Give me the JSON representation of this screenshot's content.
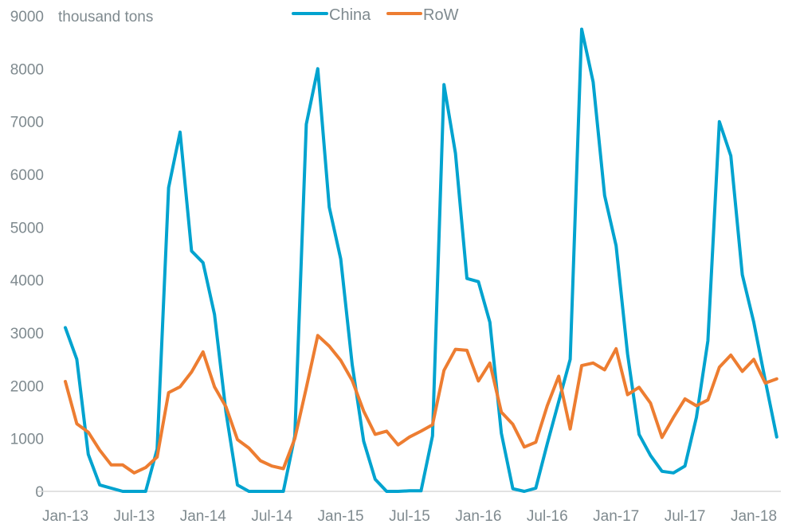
{
  "chart_data": {
    "type": "line",
    "title": "",
    "ylabel": "thousand tons",
    "xlabel": "",
    "ylim": [
      0,
      9000
    ],
    "yticks": [
      0,
      1000,
      2000,
      3000,
      4000,
      5000,
      6000,
      7000,
      8000,
      9000
    ],
    "start_month": "Jan-13",
    "xtick_labels": [
      "Jan-13",
      "Jul-13",
      "Jan-14",
      "Jul-14",
      "Jan-15",
      "Jul-15",
      "Jan-16",
      "Jul-16",
      "Jan-17",
      "Jul-17",
      "Jan-18"
    ],
    "xtick_every_months": 6,
    "legend_position": "top-center",
    "grid": false,
    "series": [
      {
        "name": "China",
        "color": "#00a3cf",
        "values": [
          3100,
          2500,
          700,
          120,
          60,
          0,
          0,
          0,
          800,
          5750,
          6800,
          4550,
          4330,
          3350,
          1500,
          120,
          0,
          0,
          0,
          0,
          1050,
          6950,
          8000,
          5380,
          4400,
          2400,
          950,
          230,
          0,
          0,
          10,
          10,
          1050,
          7700,
          6400,
          4030,
          3970,
          3200,
          1100,
          50,
          0,
          60,
          900,
          1700,
          2500,
          8750,
          7750,
          5600,
          4650,
          2600,
          1080,
          680,
          380,
          350,
          480,
          1400,
          2850,
          7000,
          6350,
          4100,
          3200,
          2100,
          1030
        ]
      },
      {
        "name": "RoW",
        "color": "#ed7d31",
        "values": [
          2080,
          1280,
          1120,
          780,
          500,
          500,
          350,
          450,
          650,
          1870,
          1980,
          2260,
          2640,
          1980,
          1600,
          980,
          820,
          580,
          480,
          430,
          1000,
          1960,
          2950,
          2750,
          2480,
          2100,
          1520,
          1080,
          1140,
          880,
          1030,
          1140,
          1260,
          2290,
          2690,
          2670,
          2090,
          2430,
          1500,
          1270,
          840,
          930,
          1620,
          2180,
          1180,
          2380,
          2430,
          2300,
          2700,
          1830,
          1970,
          1670,
          1020,
          1400,
          1750,
          1620,
          1730,
          2350,
          2580,
          2270,
          2500,
          2050,
          2130
        ]
      }
    ]
  }
}
